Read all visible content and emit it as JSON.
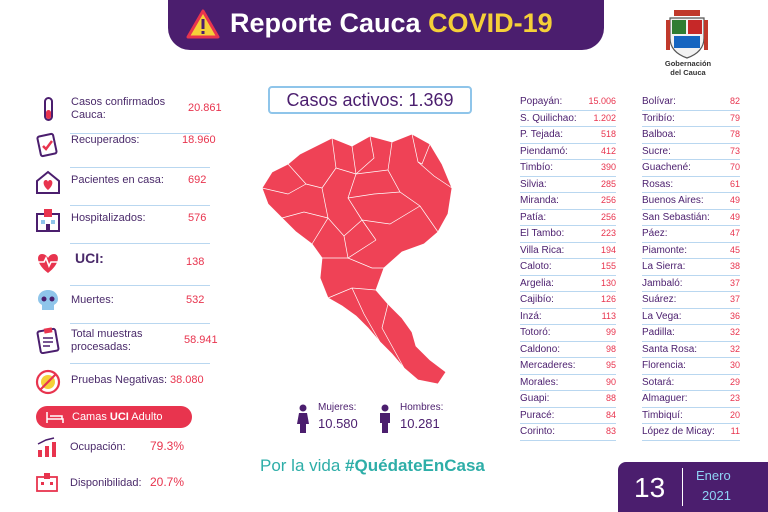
{
  "header": {
    "title_main": "Reporte Cauca ",
    "title_accent": "COVID-19"
  },
  "logo": {
    "line1": "Gobernación",
    "line2": "del Cauca"
  },
  "stats": [
    {
      "label": "Casos confirmados Cauca:",
      "value": "20.861",
      "icon": "test-tube-icon"
    },
    {
      "label": "Recuperados:",
      "value": "18.960",
      "icon": "checklist-icon"
    },
    {
      "label": "Pacientes en casa:",
      "value": "692",
      "icon": "home-heart-icon"
    },
    {
      "label": "Hospitalizados:",
      "value": "576",
      "icon": "hospital-icon"
    },
    {
      "label": "UCI:",
      "value": "138",
      "icon": "heartbeat-icon"
    },
    {
      "label": "Muertes:",
      "value": "532",
      "icon": "skull-icon"
    },
    {
      "label": "Total muestras procesadas:",
      "value": "58.941",
      "icon": "clipboard-icon"
    },
    {
      "label": "Pruebas Negativas:",
      "value": "38.080",
      "icon": "no-virus-icon"
    }
  ],
  "uci_adulto": {
    "pill_prefix": "Camas ",
    "pill_bold": "UCI",
    "pill_suffix": " Adulto",
    "ocupacion_label": "Ocupación:",
    "ocupacion_value": "79.3%",
    "disponibilidad_label": "Disponibilidad:",
    "disponibilidad_value": "20.7%"
  },
  "activos": {
    "label": "Casos activos:",
    "value": "1.369"
  },
  "mujeres": {
    "label": "Mujeres:",
    "value": "10.580"
  },
  "hombres": {
    "label": "Hombres:",
    "value": "10.281"
  },
  "slogan": {
    "prefix": "Por la vida ",
    "hashtag": "#QuédateEnCasa"
  },
  "municipios_col1": [
    {
      "name": "Popayán:",
      "value": "15.006"
    },
    {
      "name": "S. Quilichao:",
      "value": "1.202"
    },
    {
      "name": "P. Tejada:",
      "value": "518"
    },
    {
      "name": "Piendamó:",
      "value": "412"
    },
    {
      "name": "Timbío:",
      "value": "390"
    },
    {
      "name": "Silvia:",
      "value": "285"
    },
    {
      "name": "Miranda:",
      "value": "256"
    },
    {
      "name": "Patía:",
      "value": "256"
    },
    {
      "name": "El Tambo:",
      "value": "223"
    },
    {
      "name": "Villa Rica:",
      "value": "194"
    },
    {
      "name": "Caloto:",
      "value": "155"
    },
    {
      "name": "Argelia:",
      "value": "130"
    },
    {
      "name": "Cajibío:",
      "value": "126"
    },
    {
      "name": "Inzá:",
      "value": "113"
    },
    {
      "name": "Totoró:",
      "value": "99"
    },
    {
      "name": "Caldono:",
      "value": "98"
    },
    {
      "name": "Mercaderes:",
      "value": "95"
    },
    {
      "name": "Morales:",
      "value": "90"
    },
    {
      "name": "Guapi:",
      "value": "88"
    },
    {
      "name": "Puracé:",
      "value": "84"
    },
    {
      "name": "Corinto:",
      "value": "83"
    }
  ],
  "municipios_col2": [
    {
      "name": "Bolívar:",
      "value": "82"
    },
    {
      "name": "Toribío:",
      "value": "79"
    },
    {
      "name": "Balboa:",
      "value": "78"
    },
    {
      "name": "Sucre:",
      "value": "73"
    },
    {
      "name": "Guachené:",
      "value": "70"
    },
    {
      "name": "Rosas:",
      "value": "61"
    },
    {
      "name": "Buenos Aires:",
      "value": "49"
    },
    {
      "name": "San Sebastián:",
      "value": "49"
    },
    {
      "name": "Páez:",
      "value": "47"
    },
    {
      "name": "Piamonte:",
      "value": "45"
    },
    {
      "name": "La Sierra:",
      "value": "38"
    },
    {
      "name": "Jambaló:",
      "value": "37"
    },
    {
      "name": "Suárez:",
      "value": "37"
    },
    {
      "name": "La Vega:",
      "value": "36"
    },
    {
      "name": "Padilla:",
      "value": "32"
    },
    {
      "name": "Santa Rosa:",
      "value": "32"
    },
    {
      "name": "Florencia:",
      "value": "30"
    },
    {
      "name": "Sotará:",
      "value": "29"
    },
    {
      "name": "Almaguer:",
      "value": "23"
    },
    {
      "name": "Timbiquí:",
      "value": "20"
    },
    {
      "name": "López de Micay:",
      "value": "11"
    }
  ],
  "date": {
    "day": "13",
    "month": "Enero",
    "year": "2021"
  },
  "colors": {
    "purple": "#4b1e6e",
    "red": "#e8344e",
    "teal": "#2eaea8",
    "yellow": "#f5d038"
  }
}
